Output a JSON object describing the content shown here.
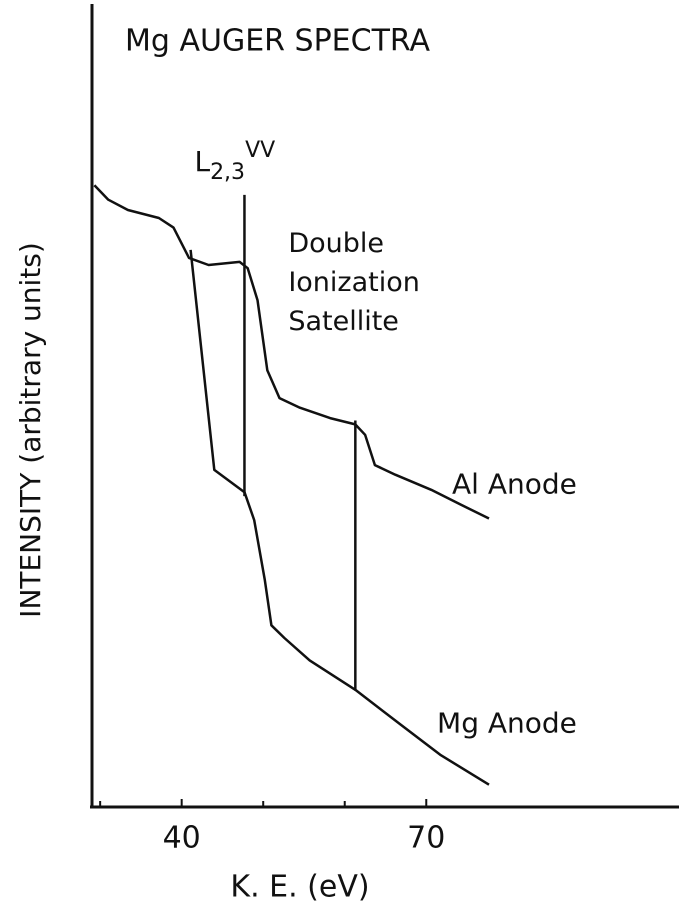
{
  "chart_data": {
    "type": "line",
    "title": "Mg AUGER SPECTRA",
    "x_label": "K. E. (eV)",
    "y_label": "INTENSITY (arbitrary units)",
    "xlim": [
      29,
      101
    ],
    "ylim": [
      0,
      100
    ],
    "xticks": [
      40,
      70
    ],
    "xminor": [
      30,
      50,
      60
    ],
    "series": [
      {
        "name": "Al Anode",
        "color": "#111111",
        "x": [
          29.3,
          31.0,
          33.4,
          37.2,
          39.0,
          40.9,
          43.3,
          47.1,
          48.1,
          49.3,
          50.5,
          52.0,
          54.5,
          58.2,
          61.3,
          62.5,
          63.7,
          66.2,
          70.6,
          74.3,
          77.7
        ],
        "values": [
          78.0,
          76.2,
          74.9,
          73.9,
          72.7,
          68.9,
          68.0,
          68.4,
          67.6,
          63.6,
          54.8,
          51.3,
          50.1,
          48.8,
          48.0,
          46.7,
          42.9,
          41.7,
          39.8,
          37.9,
          36.2
        ]
      },
      {
        "name": "Mg Anode",
        "color": "#111111",
        "x": [
          41.1,
          44.0,
          47.7,
          48.9,
          50.2,
          51.0,
          52.6,
          55.7,
          61.3,
          66.9,
          71.8,
          77.7
        ],
        "values": [
          69.9,
          42.3,
          39.5,
          36.0,
          28.5,
          22.8,
          21.2,
          18.4,
          14.7,
          10.3,
          6.5,
          2.8
        ]
      }
    ],
    "markers": [
      {
        "label": {
          "base": "L",
          "sub": "2,3",
          "sup": "VV"
        },
        "x": 47.7,
        "ymin": 39.0,
        "ymax": 76.8
      },
      {
        "label": [
          "Double",
          "Ionization",
          "Satellite"
        ],
        "x": 61.3,
        "ymin": 14.6,
        "ymax": 48.5
      }
    ]
  }
}
